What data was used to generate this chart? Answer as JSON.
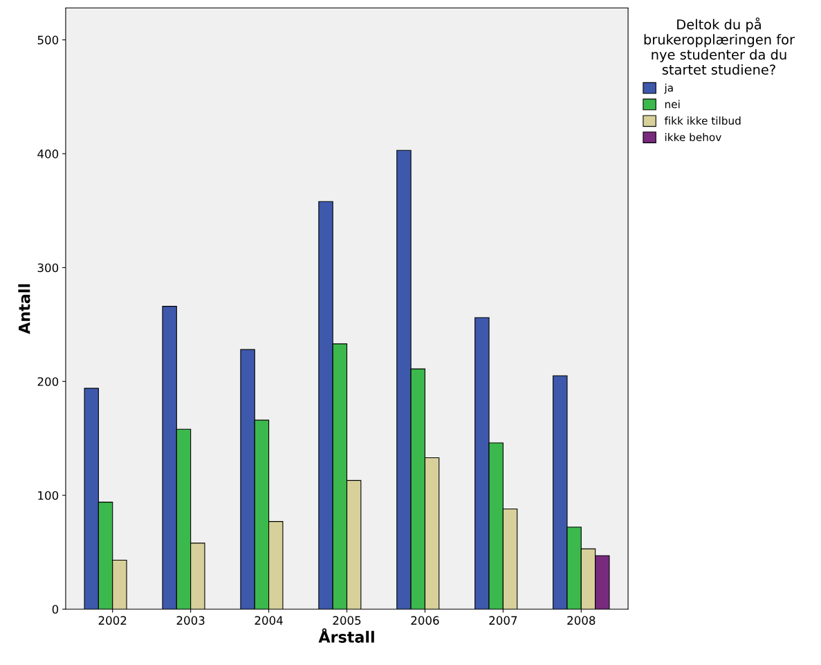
{
  "chart_data": {
    "type": "bar",
    "xlabel": "Årstall",
    "ylabel": "Antall",
    "legend_title": "Deltok du på\nbrukeropplæringen for\nnye studenter da du\nstartet studiene?",
    "categories": [
      "2002",
      "2003",
      "2004",
      "2005",
      "2006",
      "2007",
      "2008"
    ],
    "series": [
      {
        "name": "ja",
        "color": "#3e58ac",
        "values": [
          194,
          266,
          228,
          358,
          403,
          256,
          205
        ]
      },
      {
        "name": "nei",
        "color": "#3cb94c",
        "values": [
          94,
          158,
          166,
          233,
          211,
          146,
          72
        ]
      },
      {
        "name": "fikk ikke tilbud",
        "color": "#d8d09a",
        "values": [
          43,
          58,
          77,
          113,
          133,
          88,
          53
        ]
      },
      {
        "name": "ikke behov",
        "color": "#782a7d",
        "values": [
          null,
          null,
          null,
          null,
          null,
          null,
          47
        ]
      }
    ],
    "ylim": [
      0,
      528
    ],
    "yticks": [
      0,
      100,
      200,
      300,
      400,
      500
    ],
    "grid": false,
    "legend": "right"
  }
}
